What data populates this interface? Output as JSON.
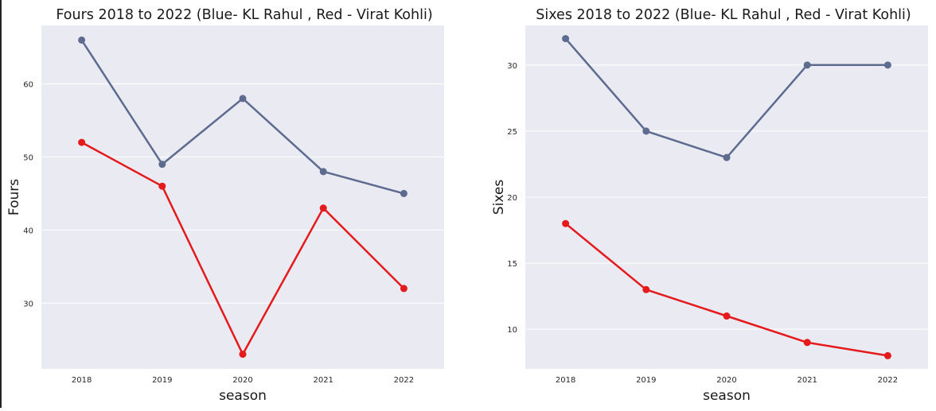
{
  "chart_data": [
    {
      "type": "line",
      "title": "Fours 2018 to 2022 (Blue- KL Rahul , Red - Virat Kohli)",
      "xlabel": "season",
      "ylabel": "Fours",
      "categories": [
        "2018",
        "2019",
        "2020",
        "2021",
        "2022"
      ],
      "yticks": [
        30,
        40,
        50,
        60
      ],
      "ylim": [
        21,
        68
      ],
      "grid": true,
      "series": [
        {
          "color": "#5d6b8f",
          "values": [
            66,
            49,
            58,
            48,
            45
          ]
        },
        {
          "color": "#e41a1c",
          "values": [
            52,
            46,
            23,
            43,
            32
          ]
        }
      ]
    },
    {
      "type": "line",
      "title": "Sixes 2018 to 2022 (Blue- KL Rahul , Red - Virat Kohli)",
      "xlabel": "season",
      "ylabel": "Sixes",
      "categories": [
        "2018",
        "2019",
        "2020",
        "2021",
        "2022"
      ],
      "yticks": [
        10,
        15,
        20,
        25,
        30
      ],
      "ylim": [
        7,
        33
      ],
      "grid": true,
      "series": [
        {
          "color": "#5d6b8f",
          "values": [
            32,
            25,
            23,
            30,
            30
          ]
        },
        {
          "color": "#e41a1c",
          "values": [
            18,
            13,
            11,
            9,
            8
          ]
        }
      ]
    }
  ]
}
